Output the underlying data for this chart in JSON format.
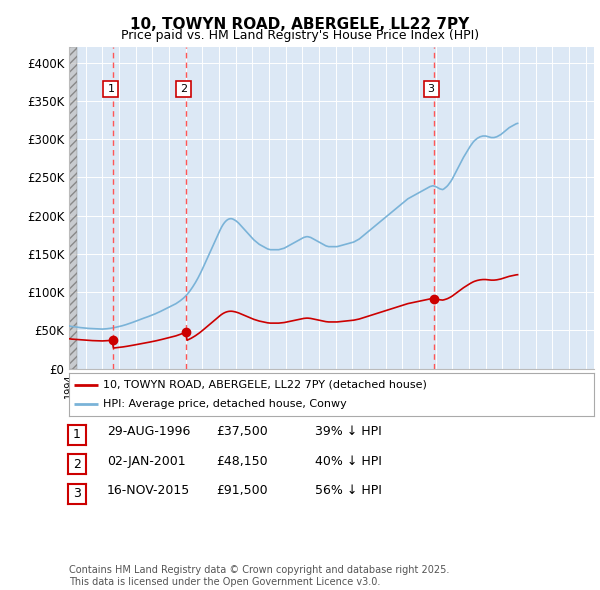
{
  "title": "10, TOWYN ROAD, ABERGELE, LL22 7PY",
  "subtitle": "Price paid vs. HM Land Registry's House Price Index (HPI)",
  "title_fontsize": 11,
  "subtitle_fontsize": 9,
  "background_color": "#ffffff",
  "plot_bg_color": "#dce8f5",
  "grid_color": "#ffffff",
  "ylim": [
    0,
    420000
  ],
  "yticks": [
    0,
    50000,
    100000,
    150000,
    200000,
    250000,
    300000,
    350000,
    400000
  ],
  "ytick_labels": [
    "£0",
    "£50K",
    "£100K",
    "£150K",
    "£200K",
    "£250K",
    "£300K",
    "£350K",
    "£400K"
  ],
  "hpi_color": "#7ab3d8",
  "price_color": "#cc0000",
  "sale_marker_color": "#cc0000",
  "dashed_line_color": "#ff5555",
  "legend_label_price": "10, TOWYN ROAD, ABERGELE, LL22 7PY (detached house)",
  "legend_label_hpi": "HPI: Average price, detached house, Conwy",
  "transactions": [
    {
      "date": 1996.66,
      "price": 37500,
      "label": "1"
    },
    {
      "date": 2001.01,
      "price": 48150,
      "label": "2"
    },
    {
      "date": 2015.88,
      "price": 91500,
      "label": "3"
    }
  ],
  "table_rows": [
    {
      "num": "1",
      "date": "29-AUG-1996",
      "price": "£37,500",
      "hpi": "39% ↓ HPI"
    },
    {
      "num": "2",
      "date": "02-JAN-2001",
      "price": "£48,150",
      "hpi": "40% ↓ HPI"
    },
    {
      "num": "3",
      "date": "16-NOV-2015",
      "price": "£91,500",
      "hpi": "56% ↓ HPI"
    }
  ],
  "footer_text": "Contains HM Land Registry data © Crown copyright and database right 2025.\nThis data is licensed under the Open Government Licence v3.0.",
  "hpi_data_monthly": {
    "start_year": 1994,
    "start_month": 1,
    "values": [
      56000,
      55500,
      55200,
      55000,
      54800,
      54500,
      54300,
      54000,
      53800,
      53600,
      53400,
      53200,
      53000,
      52800,
      52700,
      52600,
      52500,
      52400,
      52300,
      52200,
      52100,
      52000,
      51900,
      51800,
      51800,
      51900,
      52000,
      52200,
      52400,
      52600,
      52900,
      53200,
      53500,
      53900,
      54300,
      54700,
      55100,
      55500,
      56000,
      56500,
      57000,
      57600,
      58200,
      58800,
      59400,
      60000,
      60700,
      61400,
      62100,
      62800,
      63500,
      64200,
      64900,
      65600,
      66200,
      66800,
      67400,
      68100,
      68800,
      69500,
      70200,
      70900,
      71700,
      72500,
      73300,
      74100,
      75000,
      75900,
      76800,
      77700,
      78600,
      79500,
      80400,
      81300,
      82200,
      83000,
      84000,
      85000,
      86200,
      87400,
      88700,
      90100,
      91600,
      93200,
      95000,
      97000,
      99200,
      101500,
      104000,
      106700,
      109500,
      112500,
      115700,
      119000,
      122500,
      126200,
      130000,
      134000,
      138000,
      142000,
      146000,
      150000,
      154000,
      158000,
      162000,
      166000,
      170000,
      174000,
      178000,
      182000,
      185500,
      188500,
      191000,
      193000,
      194500,
      195500,
      196000,
      196000,
      195500,
      194500,
      193500,
      192000,
      190500,
      188500,
      186500,
      184500,
      182500,
      180500,
      178500,
      176500,
      174500,
      172500,
      170500,
      168500,
      167000,
      165500,
      164000,
      162500,
      161500,
      160500,
      159500,
      158500,
      157500,
      156500,
      156000,
      155500,
      155500,
      155500,
      155500,
      155500,
      155500,
      155500,
      156000,
      156500,
      157000,
      157500,
      158500,
      159500,
      160500,
      161500,
      162500,
      163500,
      164500,
      165500,
      166500,
      167500,
      168500,
      169500,
      170500,
      171500,
      172000,
      172500,
      172500,
      172000,
      171500,
      170500,
      169500,
      168500,
      167500,
      166500,
      165500,
      164500,
      163500,
      162500,
      161500,
      160500,
      160000,
      159500,
      159500,
      159500,
      159500,
      159500,
      159500,
      159500,
      160000,
      160500,
      161000,
      161500,
      162000,
      162500,
      163000,
      163500,
      164000,
      164500,
      165000,
      165500,
      166500,
      167500,
      168500,
      169500,
      171000,
      172500,
      174000,
      175500,
      177000,
      178500,
      180000,
      181500,
      183000,
      184500,
      186000,
      187500,
      189000,
      190500,
      192000,
      193500,
      195000,
      196500,
      198000,
      199500,
      201000,
      202500,
      204000,
      205500,
      207000,
      208500,
      210000,
      211500,
      213000,
      214500,
      216000,
      217500,
      219000,
      220500,
      222000,
      223000,
      224000,
      225000,
      226000,
      227000,
      228000,
      229000,
      230000,
      231000,
      232000,
      233000,
      234000,
      235000,
      236000,
      237000,
      238000,
      238500,
      239000,
      238500,
      238000,
      237000,
      236000,
      235000,
      234500,
      234000,
      235000,
      236500,
      238000,
      240000,
      242500,
      245000,
      248000,
      251500,
      255000,
      258500,
      262000,
      265500,
      269000,
      272500,
      276000,
      279000,
      282000,
      285000,
      288000,
      291000,
      293500,
      296000,
      298000,
      299500,
      301000,
      302000,
      303000,
      303500,
      304000,
      304000,
      304000,
      303500,
      303000,
      302500,
      302000,
      302000,
      302000,
      302500,
      303000,
      304000,
      305000,
      306000,
      307500,
      309000,
      310500,
      312000,
      313500,
      315000,
      316000,
      317000,
      318000,
      319000,
      320000,
      320500
    ]
  }
}
